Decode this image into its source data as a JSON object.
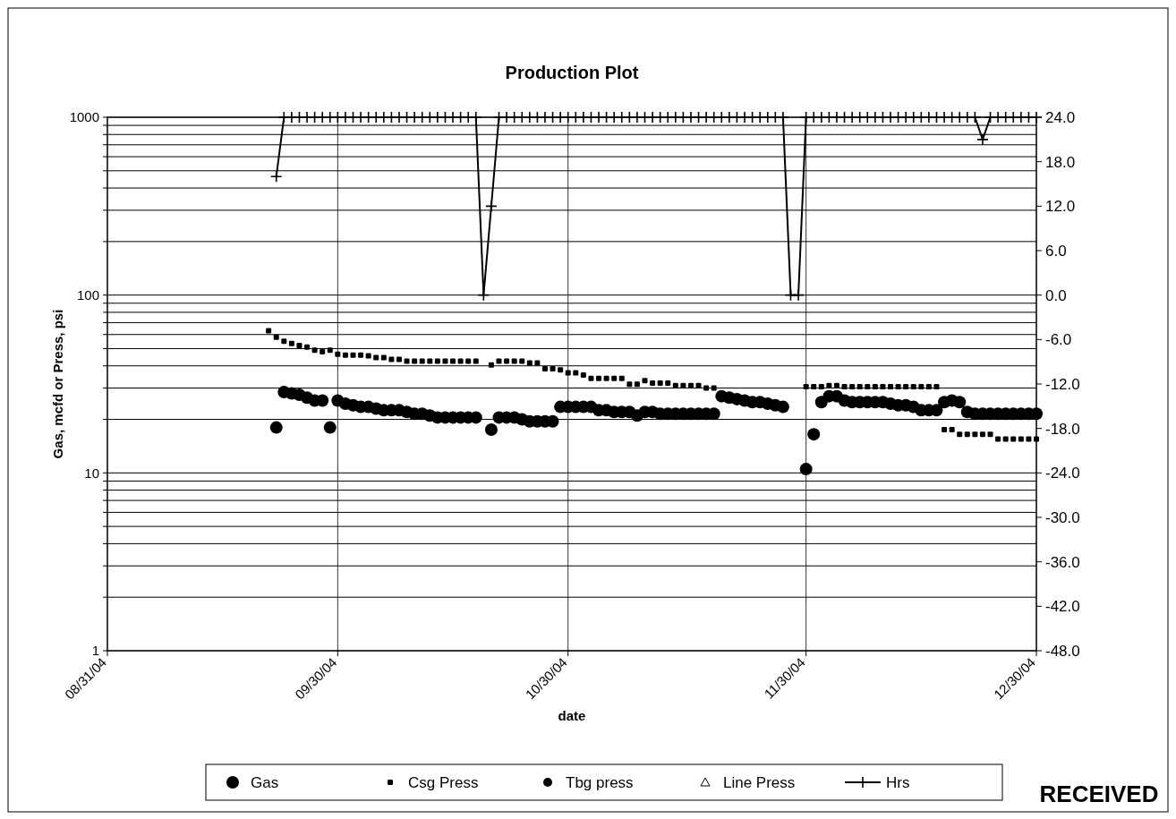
{
  "chart_data": {
    "type": "scatter",
    "title": "Production Plot",
    "xlabel": "date",
    "ylabel": "Gas, mcfd  or  Press, psi",
    "annotations": [
      "RECEIVED"
    ],
    "xlim": [
      "2004-08-31",
      "2004-12-30"
    ],
    "xticks": [
      {
        "value": "2004-08-31",
        "label": "08/31/04"
      },
      {
        "value": "2004-09-30",
        "label": "09/30/04"
      },
      {
        "value": "2004-10-30",
        "label": "10/30/04"
      },
      {
        "value": "2004-11-30",
        "label": "11/30/04"
      },
      {
        "value": "2004-12-30",
        "label": "12/30/04"
      }
    ],
    "log": "y",
    "ylim": [
      1,
      1000
    ],
    "yticks": [
      1,
      {
        "value": 2,
        "label": null
      },
      {
        "value": 3,
        "label": null
      },
      {
        "value": 4,
        "label": null
      },
      {
        "value": 5,
        "label": null
      },
      {
        "value": 6,
        "label": null
      },
      {
        "value": 7,
        "label": null
      },
      {
        "value": 8,
        "label": null
      },
      {
        "value": 9,
        "label": null
      },
      10,
      {
        "value": 20,
        "label": null
      },
      {
        "value": 30,
        "label": null
      },
      {
        "value": 40,
        "label": null
      },
      {
        "value": 50,
        "label": null
      },
      {
        "value": 60,
        "label": null
      },
      {
        "value": 70,
        "label": null
      },
      {
        "value": 80,
        "label": null
      },
      {
        "value": 90,
        "label": null
      },
      100,
      {
        "value": 200,
        "label": null
      },
      {
        "value": 300,
        "label": null
      },
      {
        "value": 400,
        "label": null
      },
      {
        "value": 500,
        "label": null
      },
      {
        "value": 600,
        "label": null
      },
      {
        "value": 700,
        "label": null
      },
      {
        "value": 800,
        "label": null
      },
      {
        "value": 900,
        "label": null
      },
      1000
    ],
    "y2lim": [
      -48,
      24
    ],
    "y2ticks": [
      {
        "value": 24,
        "label": "24.0"
      },
      {
        "value": 18,
        "label": "18.0"
      },
      {
        "value": 12,
        "label": "12.0"
      },
      {
        "value": 6,
        "label": "6.0"
      },
      {
        "value": 0,
        "label": "0.0"
      },
      {
        "value": -6,
        "label": "-6.0"
      },
      {
        "value": -12,
        "label": "-12.0"
      },
      {
        "value": -18,
        "label": "-18.0"
      },
      {
        "value": -24,
        "label": "-24.0"
      },
      {
        "value": -30,
        "label": "-30.0"
      },
      {
        "value": -36,
        "label": "-36.0"
      },
      {
        "value": -42,
        "label": "-42.0"
      },
      {
        "value": -48,
        "label": "-48.0"
      }
    ],
    "grid": true,
    "legend": "bottom",
    "x": [
      "2004-09-21",
      "2004-09-22",
      "2004-09-23",
      "2004-09-24",
      "2004-09-25",
      "2004-09-26",
      "2004-09-27",
      "2004-09-28",
      "2004-09-29",
      "2004-09-30",
      "2004-10-01",
      "2004-10-02",
      "2004-10-03",
      "2004-10-04",
      "2004-10-05",
      "2004-10-06",
      "2004-10-07",
      "2004-10-08",
      "2004-10-09",
      "2004-10-10",
      "2004-10-11",
      "2004-10-12",
      "2004-10-13",
      "2004-10-14",
      "2004-10-15",
      "2004-10-16",
      "2004-10-17",
      "2004-10-18",
      "2004-10-19",
      "2004-10-20",
      "2004-10-21",
      "2004-10-22",
      "2004-10-23",
      "2004-10-24",
      "2004-10-25",
      "2004-10-26",
      "2004-10-27",
      "2004-10-28",
      "2004-10-29",
      "2004-10-30",
      "2004-10-31",
      "2004-11-01",
      "2004-11-02",
      "2004-11-03",
      "2004-11-04",
      "2004-11-05",
      "2004-11-06",
      "2004-11-07",
      "2004-11-08",
      "2004-11-09",
      "2004-11-10",
      "2004-11-11",
      "2004-11-12",
      "2004-11-13",
      "2004-11-14",
      "2004-11-15",
      "2004-11-16",
      "2004-11-17",
      "2004-11-18",
      "2004-11-19",
      "2004-11-20",
      "2004-11-21",
      "2004-11-22",
      "2004-11-23",
      "2004-11-24",
      "2004-11-25",
      "2004-11-26",
      "2004-11-27",
      "2004-11-28",
      "2004-11-29",
      "2004-11-30",
      "2004-12-01",
      "2004-12-02",
      "2004-12-03",
      "2004-12-04",
      "2004-12-05",
      "2004-12-06",
      "2004-12-07",
      "2004-12-08",
      "2004-12-09",
      "2004-12-10",
      "2004-12-11",
      "2004-12-12",
      "2004-12-13",
      "2004-12-14",
      "2004-12-15",
      "2004-12-16",
      "2004-12-17",
      "2004-12-18",
      "2004-12-19",
      "2004-12-20",
      "2004-12-21",
      "2004-12-22",
      "2004-12-23",
      "2004-12-24",
      "2004-12-25",
      "2004-12-26",
      "2004-12-27",
      "2004-12-28",
      "2004-12-29",
      "2004-12-30"
    ],
    "series": [
      {
        "name": "Gas",
        "color": "#000000",
        "marker": "circle",
        "values": [
          null,
          18,
          28.5,
          28,
          27.5,
          26.5,
          25.5,
          25.5,
          18,
          25.5,
          24.5,
          24,
          23.5,
          23.5,
          23,
          22.5,
          22.5,
          22.5,
          22,
          21.5,
          21.5,
          21,
          20.5,
          20.5,
          20.5,
          20.5,
          20.5,
          20.5,
          null,
          17.5,
          20.5,
          20.5,
          20.5,
          20,
          19.5,
          19.5,
          19.5,
          19.5,
          23.5,
          23.5,
          23.5,
          23.5,
          23.5,
          22.5,
          22.5,
          22,
          22,
          22,
          21,
          22,
          22,
          21.5,
          21.5,
          21.5,
          21.5,
          21.5,
          21.5,
          21.5,
          21.5,
          27,
          26.5,
          26,
          25.5,
          25,
          25,
          24.5,
          24,
          23.5,
          null,
          null,
          10.5,
          16.5,
          25,
          27,
          27,
          25.5,
          25,
          25,
          25,
          25,
          25,
          24.5,
          24,
          24,
          23.5,
          22.5,
          22.5,
          22.5,
          25,
          25.5,
          25,
          22,
          21.5,
          21.5,
          21.5,
          21.5,
          21.5,
          21.5,
          21.5,
          21.5,
          21.5
        ]
      },
      {
        "name": "Csg Press",
        "color": "#000000",
        "marker": "square",
        "values": [
          63,
          58,
          55,
          53.5,
          52,
          51,
          49,
          48,
          49,
          46.5,
          46,
          46,
          46,
          45.5,
          44.5,
          44.5,
          43.5,
          43.5,
          42.5,
          42.5,
          42.5,
          42.5,
          42.5,
          42.5,
          42.5,
          42.5,
          42.5,
          42.5,
          null,
          40.5,
          42.5,
          42.5,
          42.5,
          42.5,
          41.5,
          41.5,
          38.5,
          38.5,
          38,
          36.5,
          36.5,
          35.5,
          34,
          34,
          34,
          34,
          34,
          31.5,
          31.5,
          33,
          32,
          32,
          32,
          31,
          31,
          31,
          31,
          30,
          30,
          null,
          null,
          null,
          null,
          null,
          null,
          null,
          null,
          null,
          null,
          null,
          30.5,
          30.5,
          30.5,
          31,
          31,
          30.5,
          30.5,
          30.5,
          30.5,
          30.5,
          30.5,
          30.5,
          30.5,
          30.5,
          30.5,
          30.5,
          30.5,
          30.5,
          17.5,
          17.5,
          16.5,
          16.5,
          16.5,
          16.5,
          16.5,
          15.5,
          15.5,
          15.5,
          15.5,
          15.5,
          15.5
        ]
      },
      {
        "name": "Tbg press",
        "color": "#000000",
        "marker": "circle",
        "values": [
          null,
          null,
          null,
          null,
          null,
          null,
          null,
          null,
          null,
          null,
          null,
          null,
          null,
          null,
          null,
          null,
          null,
          null,
          null,
          null,
          null,
          null,
          null,
          null,
          null,
          null,
          null,
          null,
          null,
          null,
          null,
          null,
          null,
          null,
          null,
          null,
          null,
          null,
          null,
          null,
          null,
          null,
          null,
          null,
          null,
          null,
          null,
          null,
          null,
          null,
          null,
          null,
          null,
          null,
          null,
          null,
          null,
          null,
          null,
          null,
          null,
          null,
          null,
          null,
          null,
          null,
          null,
          null,
          null,
          null,
          null,
          null,
          null,
          null,
          null,
          null,
          null,
          null,
          null,
          null,
          null,
          null,
          null,
          null,
          null,
          null,
          null,
          null,
          null,
          null,
          null,
          null,
          null,
          null,
          null,
          null,
          null,
          null,
          null,
          null,
          null
        ]
      },
      {
        "name": "Line Press",
        "color": "#000000",
        "marker": "triangle",
        "values": [
          null,
          null,
          null,
          null,
          null,
          null,
          null,
          null,
          null,
          null,
          null,
          null,
          null,
          null,
          null,
          null,
          null,
          null,
          null,
          null,
          null,
          null,
          null,
          null,
          null,
          null,
          null,
          null,
          null,
          null,
          null,
          null,
          null,
          null,
          null,
          null,
          null,
          null,
          null,
          null,
          null,
          null,
          null,
          null,
          null,
          null,
          null,
          null,
          null,
          null,
          null,
          null,
          null,
          null,
          null,
          null,
          null,
          null,
          null,
          null,
          null,
          null,
          null,
          null,
          null,
          null,
          null,
          null,
          null,
          null,
          null,
          null,
          null,
          null,
          null,
          null,
          null,
          null,
          null,
          null,
          null,
          null,
          null,
          null,
          null,
          null,
          null,
          null,
          null,
          null,
          null,
          null,
          null,
          null,
          null,
          null,
          null,
          null,
          null,
          null,
          null
        ]
      },
      {
        "name": "Hrs",
        "color": "#000000",
        "type": "line",
        "axis": "y2",
        "marker": "cross",
        "line_style": "solid",
        "values": [
          null,
          16,
          24,
          24,
          24,
          24,
          24,
          24,
          24,
          24,
          24,
          24,
          24,
          24,
          24,
          24,
          24,
          24,
          24,
          24,
          24,
          24,
          24,
          24,
          24,
          24,
          24,
          24,
          0,
          12,
          24,
          24,
          24,
          24,
          24,
          24,
          24,
          24,
          24,
          24,
          24,
          24,
          24,
          24,
          24,
          24,
          24,
          24,
          24,
          24,
          24,
          24,
          24,
          24,
          24,
          24,
          24,
          24,
          24,
          24,
          24,
          24,
          24,
          24,
          24,
          24,
          24,
          24,
          0,
          0,
          24,
          24,
          24,
          24,
          24,
          24,
          24,
          24,
          24,
          24,
          24,
          24,
          24,
          24,
          24,
          24,
          24,
          24,
          24,
          24,
          24,
          24,
          24,
          21,
          24,
          24,
          24,
          24,
          24,
          24,
          24
        ]
      }
    ]
  }
}
